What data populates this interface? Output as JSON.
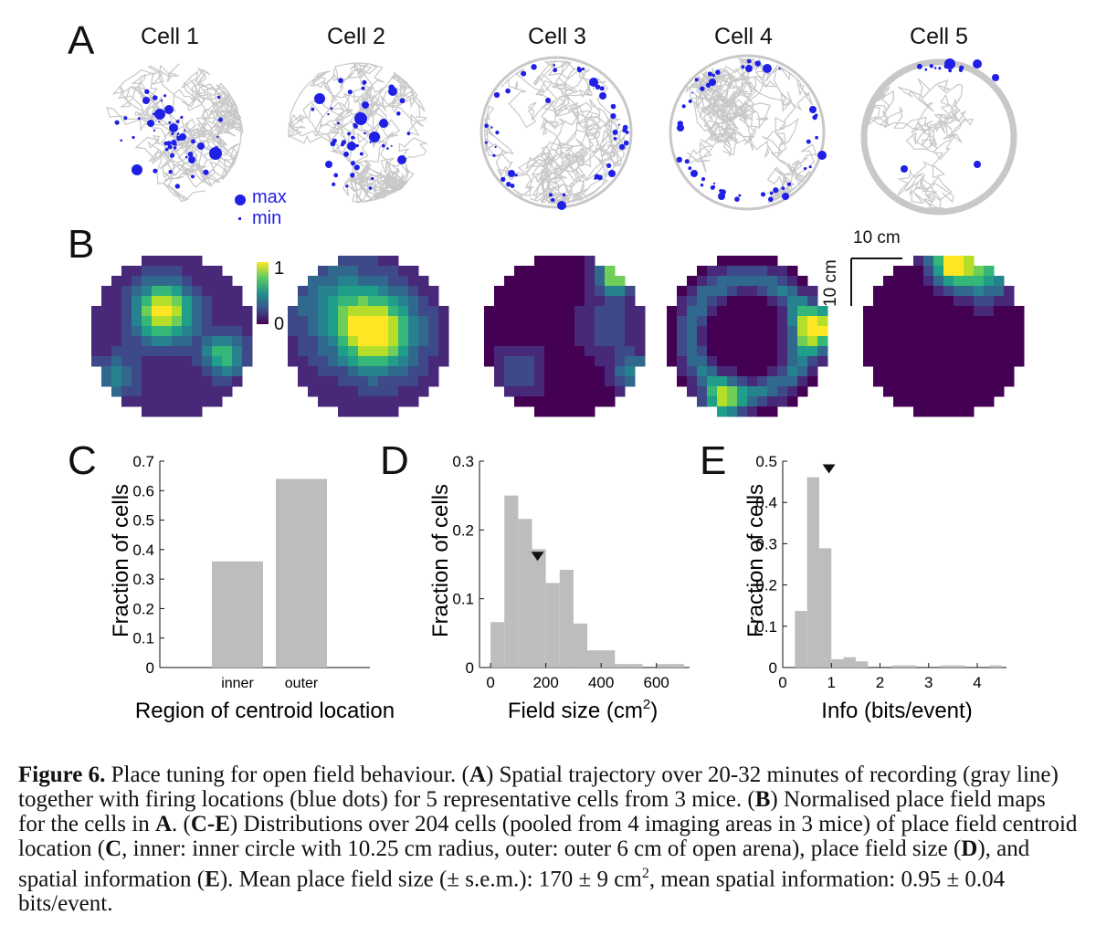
{
  "panel_labels": {
    "A": "A",
    "B": "B",
    "C": "C",
    "D": "D",
    "E": "E"
  },
  "cells": [
    "Cell 1",
    "Cell 2",
    "Cell 3",
    "Cell 4",
    "Cell 5"
  ],
  "legend_A": {
    "max": "max",
    "min": "min"
  },
  "colorbar": {
    "max_label": "1",
    "min_label": "0"
  },
  "scalebar": {
    "x_label": "10 cm",
    "y_label": "10 cm"
  },
  "colors": {
    "trajectory": "#c8c8c8",
    "spike": "#1f1fe6",
    "bar": "#bdbdbd"
  },
  "chart_data": [
    {
      "panel": "C",
      "type": "bar",
      "categories": [
        "inner",
        "outer"
      ],
      "values": [
        0.36,
        0.64
      ],
      "ylabel": "Fraction of cells",
      "xlabel": "Region of centroid location",
      "ylim": [
        0,
        0.7
      ],
      "yticks": [
        "0",
        "0.1",
        "0.2",
        "0.3",
        "0.4",
        "0.5",
        "0.6",
        "0.7"
      ]
    },
    {
      "panel": "D",
      "type": "bar",
      "bin_edges": [
        0,
        50,
        100,
        150,
        200,
        250,
        300,
        350,
        400,
        450,
        500,
        550,
        600,
        650,
        700
      ],
      "values": [
        0.066,
        0.25,
        0.216,
        0.172,
        0.123,
        0.142,
        0.064,
        0.025,
        0.025,
        0.005,
        0.005,
        0.0,
        0.005,
        0.005
      ],
      "mean_marker": 170,
      "ylabel": "Fraction of cells",
      "xlabel": "Field size (cm",
      "xlabel_sup": "2",
      "xlabel_end": ")",
      "xlim": [
        -40,
        720
      ],
      "ylim": [
        0,
        0.3
      ],
      "xticks": [
        0,
        200,
        400,
        600
      ],
      "yticks": [
        "0",
        "0.1",
        "0.2",
        "0.3"
      ]
    },
    {
      "panel": "E",
      "type": "bar",
      "bin_edges": [
        0.25,
        0.5,
        0.75,
        1.0,
        1.25,
        1.5,
        1.75,
        2.0,
        2.25,
        2.5,
        2.75,
        3.0,
        3.25,
        3.5,
        3.75,
        4.0,
        4.25,
        4.5
      ],
      "values": [
        0.137,
        0.461,
        0.289,
        0.02,
        0.025,
        0.015,
        0.0,
        0.0,
        0.005,
        0.005,
        0.0,
        0.0,
        0.005,
        0.005,
        0.0,
        0.0,
        0.005
      ],
      "mean_marker": 0.95,
      "ylabel": "Fraction of cells",
      "xlabel": "Info (bits/event)",
      "xlim": [
        0,
        4.6
      ],
      "ylim": [
        0,
        0.5
      ],
      "xticks": [
        0,
        1,
        2,
        3,
        4
      ],
      "yticks": [
        "0",
        "0.1",
        "0.2",
        "0.3",
        "0.4",
        "0.5"
      ]
    }
  ],
  "caption": {
    "figure_label": "Figure 6.",
    "text_1": " Place tuning for open field behaviour. (",
    "A1": "A",
    "text_2": ") Spatial trajectory over 20-32 minutes of recording (gray line) together with firing locations (blue dots) for 5 representative cells from 3 mice. (",
    "B1": "B",
    "text_3": ") Normalised place field maps for the cells in ",
    "A2": "A",
    "text_4": ". (",
    "CE": "C-E",
    "text_5": ") Distributions over 204 cells (pooled from 4 imaging areas in 3 mice) of place field centroid location (",
    "C1": "C",
    "text_6": ", inner: inner circle with 10.25 cm radius, outer: outer 6 cm of open arena), place field size (",
    "D1": "D",
    "text_7": "), and spatial information (",
    "E1": "E",
    "text_8": "). Mean place field size (± s.e.m.): 170 ± 9 cm",
    "sup": "2",
    "text_9": ", mean spatial information: 0.95 ± 0.04 bits/event."
  }
}
